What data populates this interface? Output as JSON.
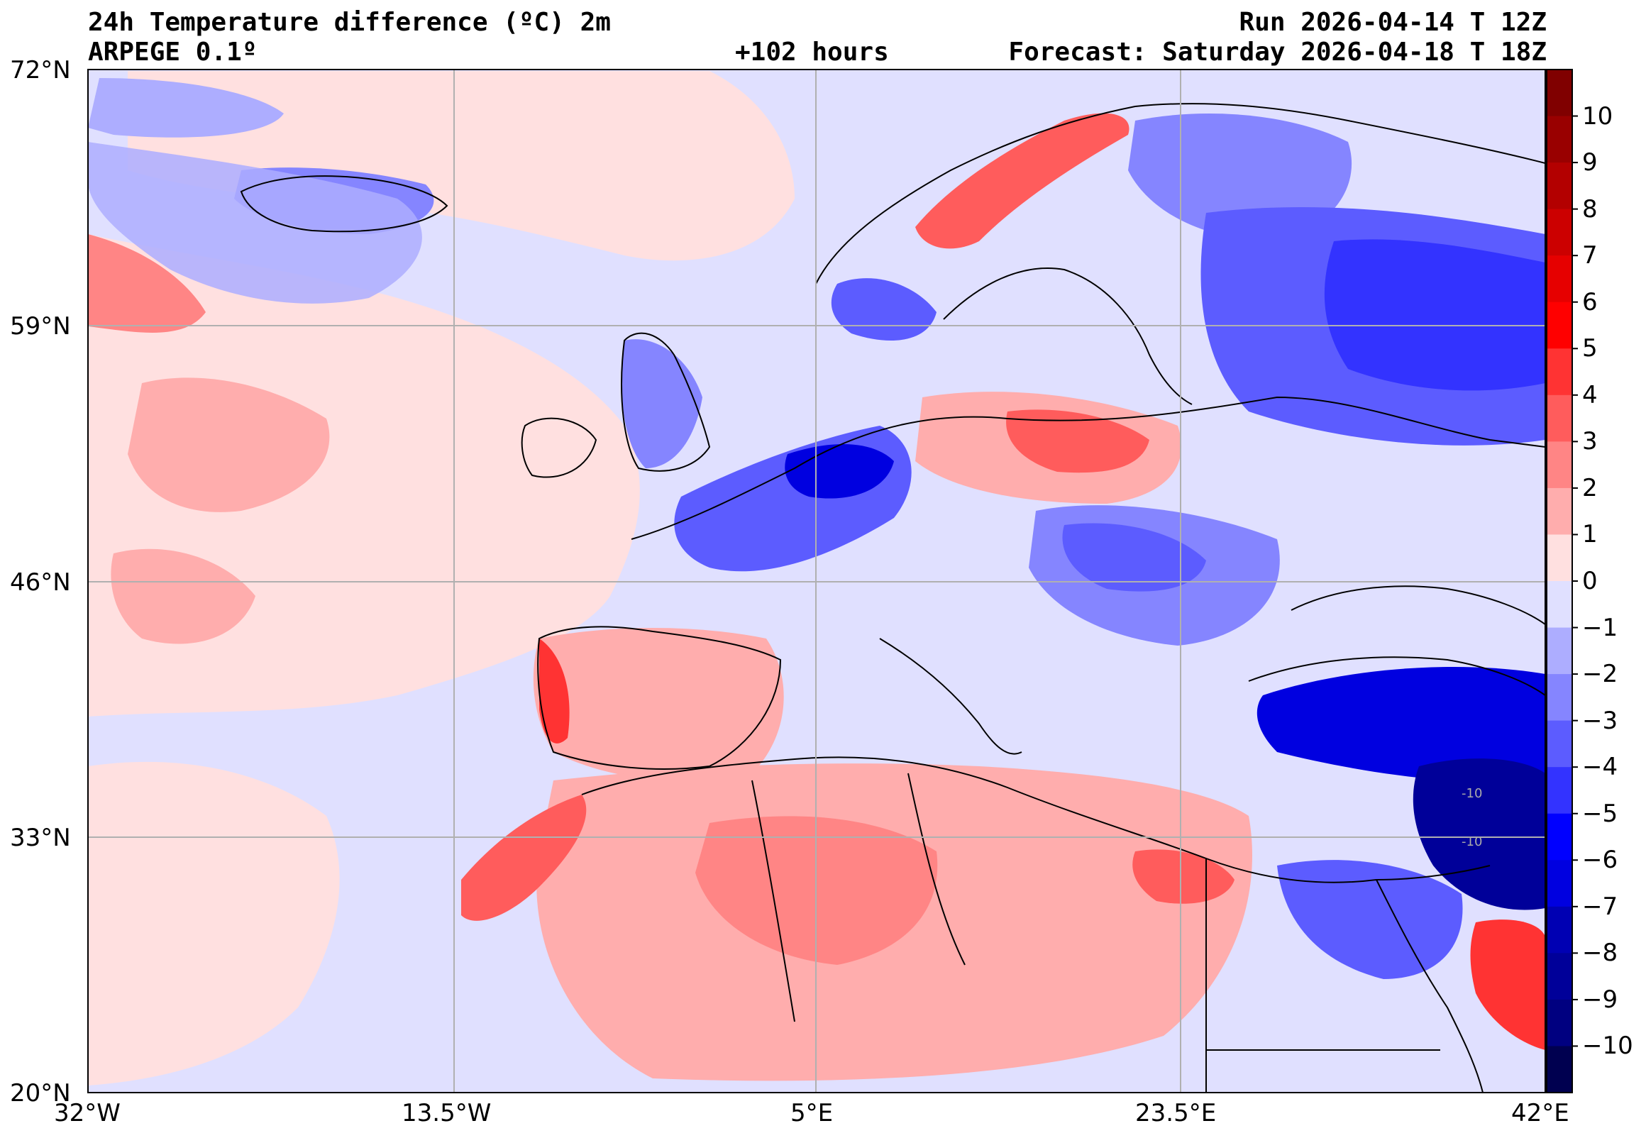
{
  "header": {
    "title": "24h Temperature difference (ºC) 2m",
    "model": "ARPEGE 0.1º",
    "lead_time": "+102 hours",
    "run": "Run 2026-04-14 T 12Z",
    "forecast": "Forecast: Saturday 2026-04-18 T 18Z"
  },
  "axes": {
    "lat_labels": [
      "72°N",
      "59°N",
      "46°N",
      "33°N",
      "20°N"
    ],
    "lon_labels": [
      "32°W",
      "13.5°W",
      "5°E",
      "23.5°E",
      "42°E"
    ]
  },
  "colorbar": {
    "labels": [
      "10",
      "9",
      "8",
      "7",
      "6",
      "5",
      "4",
      "3",
      "2",
      "1",
      "0",
      "−1",
      "−2",
      "−3",
      "−4",
      "−5",
      "−6",
      "−7",
      "−8",
      "−9",
      "−10"
    ],
    "colors_top_to_bottom": [
      "#800000",
      "#990000",
      "#b30000",
      "#cc0000",
      "#e60000",
      "#ff0000",
      "#ff3333",
      "#ff5c5c",
      "#ff8585",
      "#ffadad",
      "#ffe0e0",
      "#e0e0ff",
      "#adadff",
      "#8585ff",
      "#5c5cff",
      "#3333ff",
      "#0000ff",
      "#0000e0",
      "#0000b3",
      "#000099",
      "#000080",
      "#000050"
    ]
  },
  "map_labels": {
    "contour_a": "-10",
    "contour_b": "-10"
  },
  "colors": {
    "light_blue": "#e0e0ff",
    "light_red": "#ffe0e0",
    "grid": "#b0b0b0"
  }
}
